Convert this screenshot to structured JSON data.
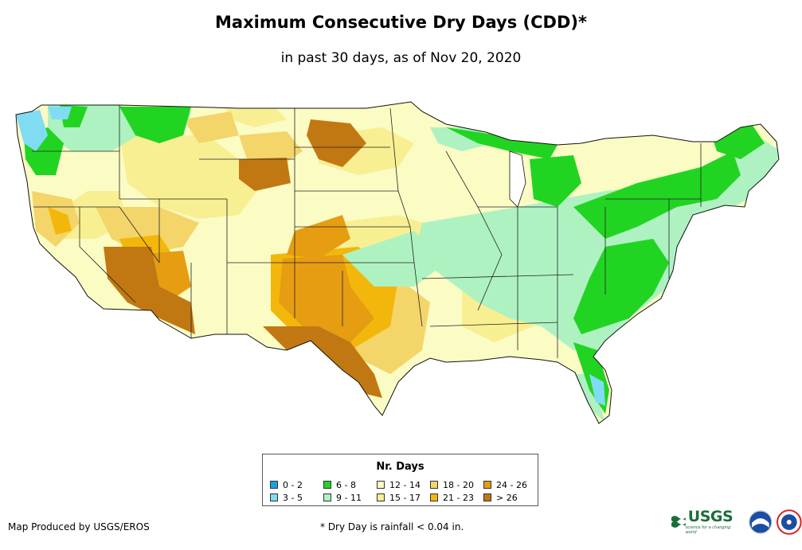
{
  "title": "Maximum Consecutive Dry Days (CDD)*",
  "subtitle": "in past 30 days, as of Nov 20, 2020",
  "legend": {
    "title": "Nr. Days",
    "items": [
      {
        "label": "0 - 2",
        "color": "#1aa0e8"
      },
      {
        "label": "3 - 5",
        "color": "#7fdcf2"
      },
      {
        "label": "6 - 8",
        "color": "#22d422"
      },
      {
        "label": "9 - 11",
        "color": "#aef2c2"
      },
      {
        "label": "12 - 14",
        "color": "#fbfbc4"
      },
      {
        "label": "15 - 17",
        "color": "#f8ef92"
      },
      {
        "label": "18 - 20",
        "color": "#f4d56a"
      },
      {
        "label": "21 - 23",
        "color": "#f2b70a"
      },
      {
        "label": "24 - 26",
        "color": "#e69d12"
      },
      {
        "label": "> 26",
        "color": "#c27812"
      }
    ]
  },
  "footer": {
    "producer": "Map Produced by USGS/EROS",
    "note": "* Dry Day is rainfall < 0.04 in."
  },
  "logos": {
    "usgs": "USGS",
    "usgs_tagline": "science for a changing world"
  }
}
